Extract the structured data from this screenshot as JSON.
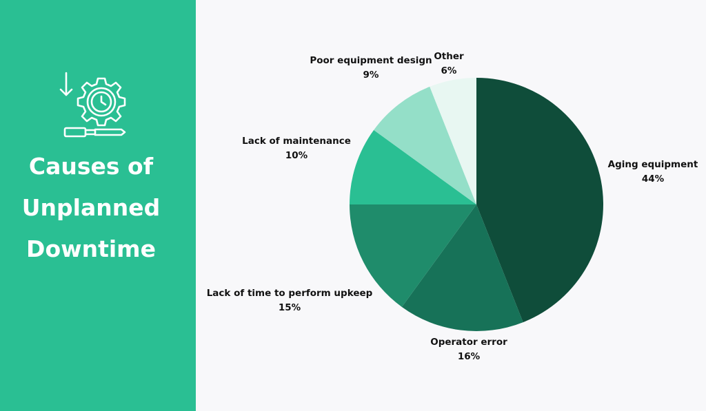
{
  "sidebar": {
    "title_lines": [
      "Causes of",
      "Unplanned",
      "Downtime"
    ],
    "icon": "gear-clock-screwdriver-icon",
    "background_color": "#2abf93"
  },
  "chart_data": {
    "type": "pie",
    "title": "Causes of Unplanned Downtime",
    "slices": [
      {
        "label": "Aging equipment",
        "value": 44,
        "value_label": "44%",
        "color": "#0f4d3a"
      },
      {
        "label": "Operator error",
        "value": 16,
        "value_label": "16%",
        "color": "#177258"
      },
      {
        "label": "Lack of time to perform upkeep",
        "value": 15,
        "value_label": "15%",
        "color": "#1f8c6b"
      },
      {
        "label": "Lack of maintenance",
        "value": 10,
        "value_label": "10%",
        "color": "#2abf93"
      },
      {
        "label": "Poor equipment design",
        "value": 9,
        "value_label": "9%",
        "color": "#94dfc8"
      },
      {
        "label": "Other",
        "value": 6,
        "value_label": "6%",
        "color": "#e8f7f2"
      }
    ]
  }
}
